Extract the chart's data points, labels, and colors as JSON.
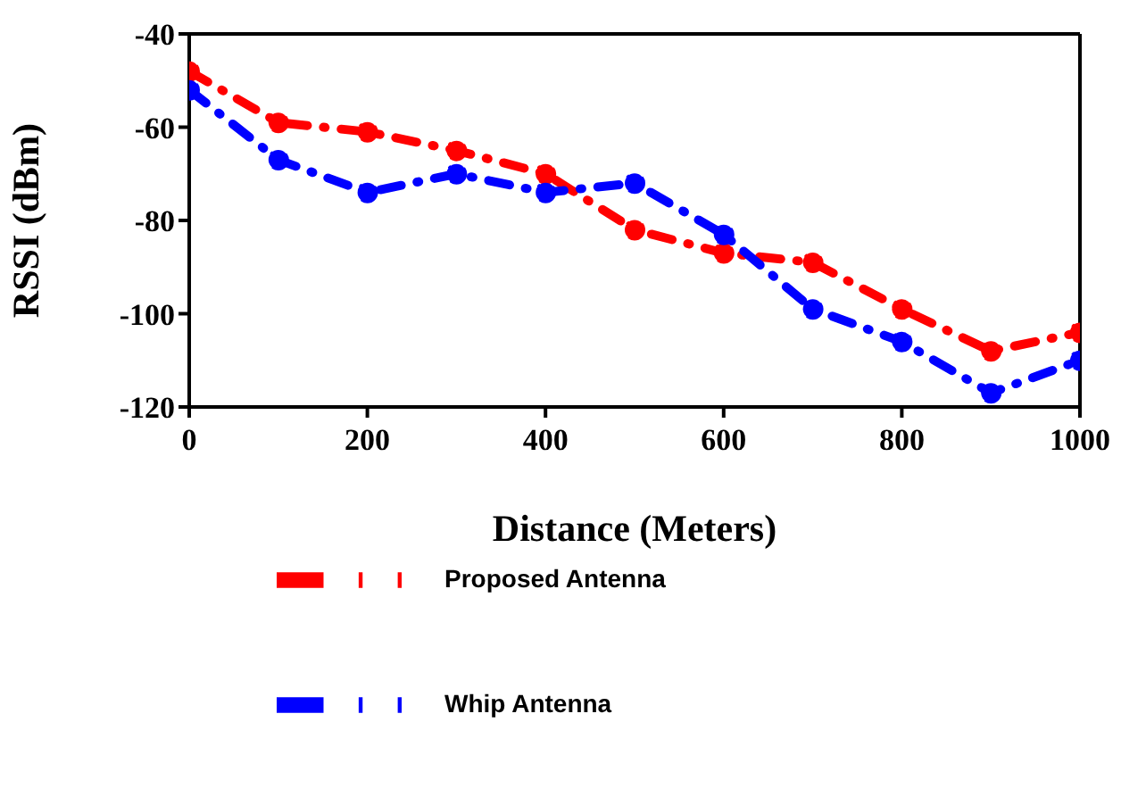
{
  "chart_data": {
    "type": "line",
    "xlabel": "Distance (Meters)",
    "ylabel": "RSSI (dBm)",
    "x": [
      0,
      100,
      200,
      300,
      400,
      500,
      600,
      700,
      800,
      900,
      1000
    ],
    "series": [
      {
        "name": "Proposed Antenna",
        "color": "#ff0000",
        "values": [
          -48,
          -59,
          -61,
          -65,
          -70,
          -82,
          -87,
          -89,
          -99,
          -108,
          -104
        ]
      },
      {
        "name": "Whip Antenna",
        "color": "#0000ff",
        "values": [
          -52,
          -67,
          -74,
          -70,
          -74,
          -72,
          -83,
          -99,
          -106,
          -117,
          -110
        ]
      }
    ],
    "xlim": [
      0,
      1000
    ],
    "xticks": [
      0,
      200,
      400,
      600,
      800,
      1000
    ],
    "ylim": [
      -120,
      -40
    ],
    "yticks": [
      -120,
      -100,
      -80,
      -60,
      -40
    ],
    "grid": false,
    "legend": "bottom left",
    "marker": "circle",
    "line_style": "dashed"
  }
}
